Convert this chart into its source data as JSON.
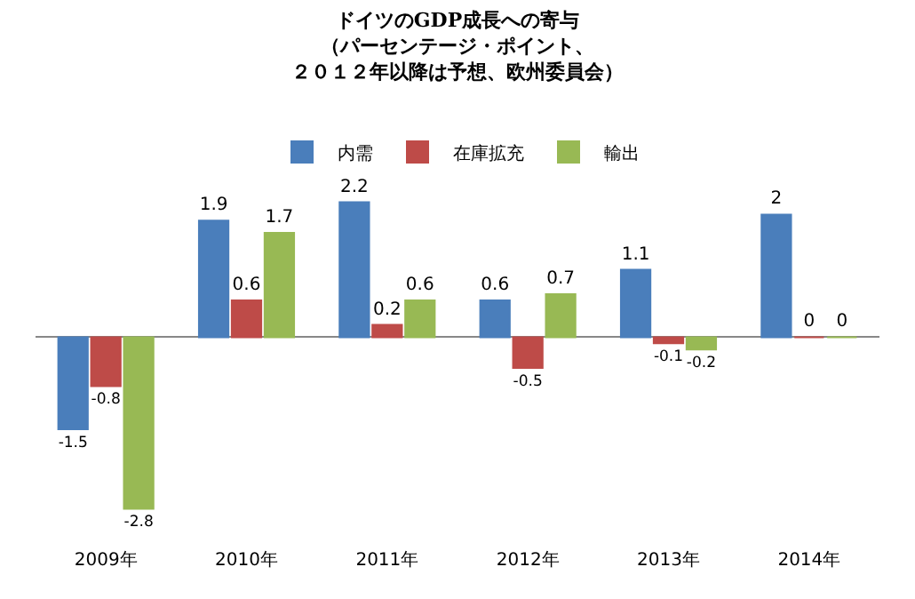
{
  "chart_data": {
    "type": "bar",
    "title": "ドイツのGDP成長への寄与（パーセンテージ・ポイント、２０１２年以降は予想、欧州委員会）",
    "categories": [
      "2009年",
      "2010年",
      "2011年",
      "2012年",
      "2013年",
      "2014年"
    ],
    "series": [
      {
        "name": "内需",
        "color": "#4a7ebb",
        "values": [
          -1.5,
          1.9,
          2.2,
          0.6,
          1.1,
          2
        ]
      },
      {
        "name": "在庫拡充",
        "color": "#be4b48",
        "values": [
          -0.8,
          0.6,
          0.2,
          -0.5,
          -0.1,
          0
        ]
      },
      {
        "name": "輸出",
        "color": "#98b954",
        "values": [
          -2.8,
          1.7,
          0.6,
          0.7,
          -0.2,
          0
        ]
      }
    ],
    "data_labels": true,
    "legend": "top",
    "tick_labels": "x"
  }
}
